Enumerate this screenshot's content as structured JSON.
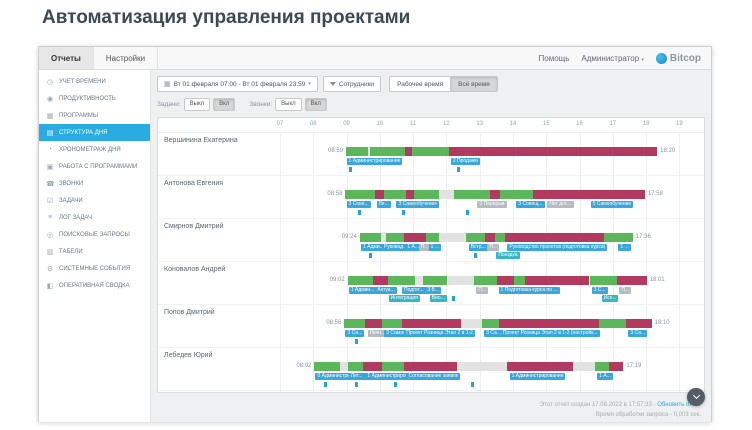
{
  "page": {
    "title": "Автоматизация управления проектами"
  },
  "topnav": {
    "tabs": [
      {
        "label": "Отчеты",
        "active": true
      },
      {
        "label": "Настройки",
        "active": false
      }
    ],
    "help": "Помощь",
    "user": "Администратор",
    "brand": "Bitcop"
  },
  "sidebar": {
    "items": [
      {
        "id": "time-accounting",
        "label": "УЧЕТ ВРЕМЕНИ",
        "icon": "clock-icon",
        "active": false
      },
      {
        "id": "productivity",
        "label": "ПРОДУКТИВНОСТЬ",
        "icon": "productivity-icon",
        "active": false
      },
      {
        "id": "programs",
        "label": "ПРОГРАММЫ",
        "icon": "programs-icon",
        "active": false
      },
      {
        "id": "day-structure",
        "label": "СТРУКТУРА ДНЯ",
        "icon": "day-structure-icon",
        "active": true
      },
      {
        "id": "day-timing",
        "label": "ХРОНОМЕТРАЖ ДНЯ",
        "icon": "timer-icon",
        "active": false
      },
      {
        "id": "work-with-programs",
        "label": "РАБОТА С ПРОГРАММАМИ",
        "icon": "work-programs-icon",
        "active": false
      },
      {
        "id": "calls",
        "label": "ЗВОНКИ",
        "icon": "phone-icon",
        "active": false
      },
      {
        "id": "tasks",
        "label": "ЗАДАЧИ",
        "icon": "tasks-icon",
        "active": false
      },
      {
        "id": "task-log",
        "label": "ЛОГ ЗАДАЧ",
        "icon": "task-log-icon",
        "active": false
      },
      {
        "id": "search-queries",
        "label": "ПОИСКОВЫЕ ЗАПРОСЫ",
        "icon": "search-icon",
        "active": false
      },
      {
        "id": "timesheets",
        "label": "ТАБЕЛИ",
        "icon": "timesheet-icon",
        "active": false
      },
      {
        "id": "system-events",
        "label": "СИСТЕМНЫЕ СОБЫТИЯ",
        "icon": "system-events-icon",
        "active": false
      },
      {
        "id": "operational-summary",
        "label": "ОПЕРАТИВНАЯ СВОДКА",
        "icon": "summary-icon",
        "active": false
      }
    ]
  },
  "toolbar": {
    "date_range": "Вт 01 февраля 07:00 - Вт 01 февраля 23:59",
    "employees": "Сотрудники",
    "segments": [
      {
        "label": "Рабочее время",
        "active": false
      },
      {
        "label": "Всё время",
        "active": true
      }
    ],
    "tasks_label": "Задачи:",
    "calls_label": "Звонки:",
    "toggle_off": "Выкл",
    "toggle_on": "Вкл"
  },
  "colors": {
    "accent": "#2aabe2",
    "green": "#5cb65c",
    "red": "#b23a60",
    "idle": "#e2e2e2",
    "blue_tag": "#3aa6d9",
    "cyan_tag": "#37b6c6",
    "gray_tag": "#b4bcc1",
    "marker": "#2a9fd8"
  },
  "chart": {
    "type": "timeline",
    "axis": {
      "start": "07:00",
      "end": "19:30"
    },
    "hours": [
      "07",
      "08",
      "09",
      "10",
      "11",
      "12",
      "13",
      "14",
      "15",
      "16",
      "17",
      "18",
      "19"
    ],
    "rows": [
      {
        "name": "Вершинина Екатерина",
        "start": "08:59",
        "end": "18:20",
        "segments": [
          [
            "08:59",
            "09:38",
            "green"
          ],
          [
            "09:38",
            "09:42",
            "idle"
          ],
          [
            "09:42",
            "10:46",
            "green"
          ],
          [
            "10:46",
            "10:58",
            "red"
          ],
          [
            "10:58",
            "12:04",
            "green"
          ],
          [
            "12:04",
            "18:20",
            "red"
          ]
        ],
        "tags": [
          [
            "09:00",
            "1 Администрирование",
            "blue",
            1
          ],
          [
            "12:08",
            "2 Продажи",
            "blue",
            1
          ]
        ],
        "markers": [
          "09:05",
          "12:20"
        ]
      },
      {
        "name": "Антонова Евгения",
        "start": "08:58",
        "end": "17:58",
        "segments": [
          [
            "08:58",
            "09:52",
            "green"
          ],
          [
            "09:52",
            "10:08",
            "red"
          ],
          [
            "10:08",
            "10:48",
            "green"
          ],
          [
            "10:48",
            "11:02",
            "red"
          ],
          [
            "11:02",
            "11:46",
            "green"
          ],
          [
            "11:46",
            "12:14",
            "idle"
          ],
          [
            "12:14",
            "13:18",
            "green"
          ],
          [
            "13:18",
            "13:36",
            "red"
          ],
          [
            "13:36",
            "14:36",
            "green"
          ],
          [
            "14:36",
            "17:58",
            "red"
          ]
        ],
        "tags": [
          [
            "09:00",
            "3 Сове...",
            "blue",
            1
          ],
          [
            "09:54",
            "Ле...",
            "blue",
            1
          ],
          [
            "10:30",
            "3 Самообучение",
            "blue",
            1
          ],
          [
            "12:56",
            "0 Перерыв",
            "gray",
            1
          ],
          [
            "14:06",
            "3 Совещ...",
            "blue",
            1
          ],
          [
            "15:02",
            "Нет дос...",
            "gray",
            1
          ],
          [
            "16:20",
            "5 Самообучение",
            "blue",
            1
          ]
        ],
        "markers": [
          "09:20",
          "10:40",
          "12:35"
        ]
      },
      {
        "name": "Смирнов Дмитрий",
        "start": "09:24",
        "end": "17:36",
        "segments": [
          [
            "09:24",
            "10:02",
            "green"
          ],
          [
            "10:02",
            "10:12",
            "idle"
          ],
          [
            "10:12",
            "10:44",
            "green"
          ],
          [
            "10:44",
            "11:24",
            "red"
          ],
          [
            "11:24",
            "11:46",
            "green"
          ],
          [
            "11:46",
            "12:36",
            "idle"
          ],
          [
            "12:36",
            "13:10",
            "green"
          ],
          [
            "13:10",
            "13:28",
            "red"
          ],
          [
            "13:28",
            "13:46",
            "green"
          ],
          [
            "13:46",
            "16:44",
            "red"
          ],
          [
            "16:44",
            "17:36",
            "green"
          ]
        ],
        "tags": [
          [
            "09:26",
            "1 Адми...",
            "blue",
            1
          ],
          [
            "10:04",
            "Руковод...",
            "blue",
            1
          ],
          [
            "10:46",
            "1 А...",
            "blue",
            1
          ],
          [
            "11:10",
            "П...",
            "gray",
            1
          ],
          [
            "11:28",
            "1 ...",
            "blue",
            1
          ],
          [
            "12:40",
            "Встр...",
            "blue",
            1
          ],
          [
            "13:14",
            "П...",
            "gray",
            1
          ],
          [
            "13:50",
            "Руководство проектов (подготовка курса)",
            "blue",
            1
          ],
          [
            "17:10",
            "1 ...",
            "blue",
            1
          ],
          [
            "13:30",
            "Поездка",
            "cyan",
            2
          ]
        ],
        "markers": [
          "09:40",
          "12:50"
        ]
      },
      {
        "name": "Коновалов Андрей",
        "start": "09:02",
        "end": "18:01",
        "segments": [
          [
            "09:02",
            "09:48",
            "green"
          ],
          [
            "09:48",
            "10:14",
            "red"
          ],
          [
            "10:14",
            "11:04",
            "green"
          ],
          [
            "11:04",
            "11:18",
            "idle"
          ],
          [
            "11:18",
            "12:02",
            "green"
          ],
          [
            "12:02",
            "12:50",
            "idle"
          ],
          [
            "12:50",
            "13:32",
            "green"
          ],
          [
            "13:32",
            "14:02",
            "red"
          ],
          [
            "14:02",
            "14:22",
            "green"
          ],
          [
            "14:22",
            "16:18",
            "red"
          ],
          [
            "16:18",
            "17:08",
            "green"
          ],
          [
            "17:08",
            "18:01",
            "red"
          ]
        ],
        "tags": [
          [
            "09:04",
            "1 Админ...",
            "blue",
            1
          ],
          [
            "09:52",
            "Актуа...",
            "blue",
            1
          ],
          [
            "10:40",
            "Подгот...",
            "blue",
            1
          ],
          [
            "11:22",
            "3 В...",
            "blue",
            1
          ],
          [
            "12:54",
            "П...",
            "gray",
            1
          ],
          [
            "13:34",
            "1 Подготовка курса по ...",
            "blue",
            1
          ],
          [
            "16:22",
            "3 С...",
            "blue",
            1
          ],
          [
            "17:12",
            "П...",
            "gray",
            1
          ],
          [
            "10:16",
            "Интеграция",
            "cyan",
            2
          ],
          [
            "11:30",
            "Вео...",
            "cyan",
            2
          ],
          [
            "16:40",
            "Иск...",
            "cyan",
            2
          ]
        ],
        "markers": [
          "12:10"
        ]
      },
      {
        "name": "Попов Дмитрий",
        "start": "08:56",
        "end": "18:10",
        "segments": [
          [
            "08:56",
            "09:34",
            "green"
          ],
          [
            "09:34",
            "10:04",
            "red"
          ],
          [
            "10:04",
            "10:40",
            "green"
          ],
          [
            "10:40",
            "12:26",
            "red"
          ],
          [
            "12:26",
            "13:04",
            "idle"
          ],
          [
            "13:04",
            "13:34",
            "green"
          ],
          [
            "13:34",
            "16:36",
            "red"
          ],
          [
            "16:36",
            "17:24",
            "green"
          ],
          [
            "17:24",
            "18:10",
            "red"
          ]
        ],
        "tags": [
          [
            "08:58",
            "3 Са...",
            "blue",
            1
          ],
          [
            "09:38",
            "Личн...",
            "gray",
            1
          ],
          [
            "10:08",
            "3 Самообуч...",
            "blue",
            1
          ],
          [
            "10:44",
            "Проект Розница Этап 2 в 1-2",
            "blue",
            1
          ],
          [
            "13:08",
            "3 Са...",
            "blue",
            1
          ],
          [
            "13:38",
            "Проект Розница Этап 2 в 1-2 (настройк...",
            "blue",
            1
          ],
          [
            "17:28",
            "3 Са...",
            "blue",
            1
          ]
        ],
        "markers": [
          "09:15"
        ]
      },
      {
        "name": "Лебедев Юрий",
        "start": "08:02",
        "end": "17:19",
        "segments": [
          [
            "08:02",
            "08:48",
            "green"
          ],
          [
            "08:48",
            "09:02",
            "idle"
          ],
          [
            "09:02",
            "09:30",
            "green"
          ],
          [
            "09:30",
            "10:04",
            "red"
          ],
          [
            "10:04",
            "10:44",
            "green"
          ],
          [
            "10:44",
            "12:20",
            "red"
          ],
          [
            "12:20",
            "13:50",
            "idle"
          ],
          [
            "13:50",
            "15:48",
            "red"
          ],
          [
            "15:48",
            "16:28",
            "idle"
          ],
          [
            "16:28",
            "16:54",
            "green"
          ],
          [
            "16:54",
            "17:19",
            "red"
          ]
        ],
        "tags": [
          [
            "08:04",
            "0 Администрирова...",
            "blue",
            1
          ],
          [
            "09:04",
            "Лет...",
            "blue",
            1
          ],
          [
            "09:34",
            "1 Администрирование",
            "blue",
            1
          ],
          [
            "10:48",
            "Согласование заявок",
            "blue",
            1
          ],
          [
            "13:54",
            "1 Администрирование",
            "blue",
            1
          ],
          [
            "16:32",
            "1 А...",
            "blue",
            1
          ]
        ],
        "markers": [
          "08:20",
          "09:15",
          "10:25",
          "12:45"
        ]
      }
    ]
  },
  "footer": {
    "created": "Этот отчет создан 17.08.2022 в 17:57:33 -",
    "refresh_link": "Обновить отчет",
    "processing": "Время обработки запроса - 0,003 сек."
  }
}
